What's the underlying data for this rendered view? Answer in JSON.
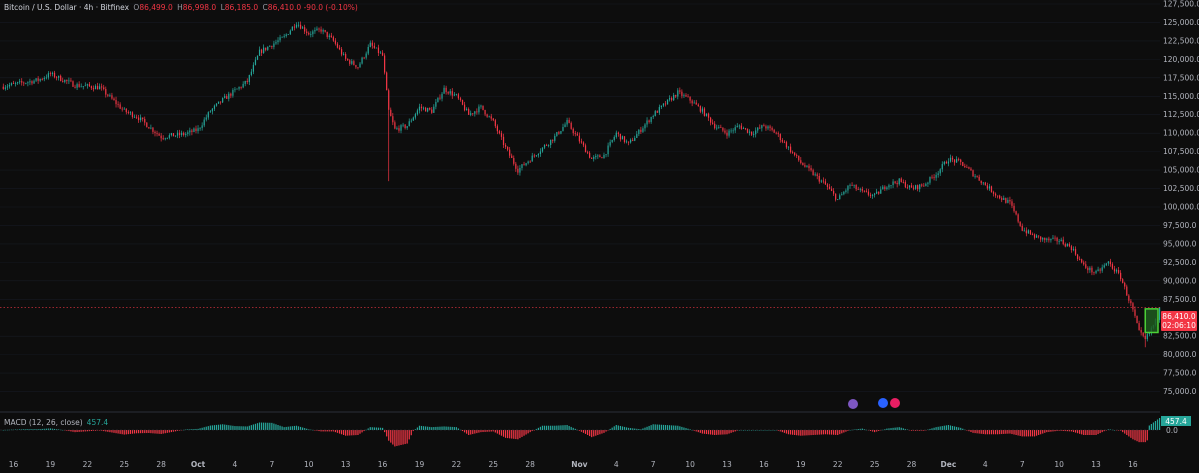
{
  "header": {
    "symbol": "Bitcoin / U.S. Dollar · 4h · Bitfinex",
    "open_label": "O",
    "open": "86,499.0",
    "high_label": "H",
    "high": "86,998.0",
    "low_label": "L",
    "low": "86,185.0",
    "close_label": "C",
    "close": "86,410.0",
    "change": "-90.0 (-0.10%)"
  },
  "price_badge": {
    "price": "86,410.0",
    "countdown": "02:06:10"
  },
  "macd": {
    "label": "MACD (12, 26, close)",
    "value": "457.4",
    "zero": "0.0"
  },
  "colors": {
    "up": "#26a69a",
    "down": "#f23645",
    "zone_fill": "#1f5a1f",
    "zone_border": "#4cd137",
    "background": "#0d0d0d"
  },
  "chart_data": {
    "type": "candlestick",
    "interval": "4h",
    "ylim": [
      72500,
      127500
    ],
    "y_ticks": [
      "127,500.0",
      "125,000.0",
      "122,500.0",
      "120,000.0",
      "117,500.0",
      "115,000.0",
      "112,500.0",
      "110,000.0",
      "107,500.0",
      "105,000.0",
      "102,500.0",
      "100,000.0",
      "97,500.0",
      "95,000.0",
      "92,500.0",
      "90,000.0",
      "87,500.0",
      "82,500.0",
      "80,000.0",
      "77,500.0",
      "75,000.0"
    ],
    "y_tick_values": [
      127500,
      125000,
      122500,
      120000,
      117500,
      115000,
      112500,
      110000,
      107500,
      105000,
      102500,
      100000,
      97500,
      95000,
      92500,
      90000,
      87500,
      82500,
      80000,
      77500,
      75000
    ],
    "x_ticks": [
      "16",
      "19",
      "22",
      "25",
      "28",
      "Oct",
      "4",
      "7",
      "10",
      "13",
      "16",
      "19",
      "22",
      "25",
      "28",
      "Nov",
      "4",
      "7",
      "10",
      "13",
      "16",
      "19",
      "22",
      "25",
      "28",
      "Dec",
      "4",
      "7",
      "10",
      "13",
      "16"
    ],
    "x_tick_days": [
      0,
      3,
      6,
      9,
      12,
      15,
      18,
      21,
      24,
      27,
      30,
      33,
      36,
      39,
      42,
      46,
      49,
      52,
      55,
      58,
      61,
      64,
      67,
      70,
      73,
      76,
      79,
      82,
      85,
      88,
      91
    ],
    "x_range_days": [
      -1.1,
      93.2
    ],
    "close_path": [
      [
        -1,
        116300
      ],
      [
        2,
        117200
      ],
      [
        3,
        118000
      ],
      [
        5,
        116500
      ],
      [
        7,
        116200
      ],
      [
        9,
        113000
      ],
      [
        10,
        112300
      ],
      [
        12,
        109500
      ],
      [
        14,
        109900
      ],
      [
        15,
        110500
      ],
      [
        16,
        113000
      ],
      [
        17,
        114500
      ],
      [
        19,
        117000
      ],
      [
        20,
        121000
      ],
      [
        22,
        123000
      ],
      [
        23,
        125000
      ],
      [
        24,
        123500
      ],
      [
        25,
        124000
      ],
      [
        26,
        122500
      ],
      [
        27,
        120000
      ],
      [
        28,
        119000
      ],
      [
        29,
        122000
      ],
      [
        30,
        120500
      ],
      [
        30.5,
        113000
      ],
      [
        31,
        110500
      ],
      [
        32,
        111000
      ],
      [
        33,
        113500
      ],
      [
        34,
        113000
      ],
      [
        35,
        116000
      ],
      [
        36,
        115000
      ],
      [
        37,
        112500
      ],
      [
        38,
        113500
      ],
      [
        39,
        111500
      ],
      [
        40,
        108000
      ],
      [
        41,
        105000
      ],
      [
        42,
        106500
      ],
      [
        43,
        108000
      ],
      [
        44,
        109500
      ],
      [
        45,
        111500
      ],
      [
        46,
        109000
      ],
      [
        47,
        106500
      ],
      [
        48,
        107000
      ],
      [
        49,
        110000
      ],
      [
        50,
        108500
      ],
      [
        51,
        110500
      ],
      [
        52,
        112500
      ],
      [
        53,
        114000
      ],
      [
        54,
        115500
      ],
      [
        55,
        114500
      ],
      [
        56,
        113000
      ],
      [
        57,
        111000
      ],
      [
        58,
        110000
      ],
      [
        59,
        111000
      ],
      [
        60,
        110000
      ],
      [
        61,
        111000
      ],
      [
        62,
        110000
      ],
      [
        63,
        108000
      ],
      [
        64,
        106000
      ],
      [
        65,
        104500
      ],
      [
        66,
        103000
      ],
      [
        67,
        101000
      ],
      [
        68,
        103000
      ],
      [
        69,
        102000
      ],
      [
        70,
        101500
      ],
      [
        71,
        103000
      ],
      [
        72,
        103500
      ],
      [
        73,
        102500
      ],
      [
        74,
        103000
      ],
      [
        75,
        104500
      ],
      [
        76,
        106500
      ],
      [
        77,
        106000
      ],
      [
        78,
        104500
      ],
      [
        79,
        103000
      ],
      [
        80,
        101500
      ],
      [
        81,
        100500
      ],
      [
        82,
        97000
      ],
      [
        83,
        96000
      ],
      [
        84,
        95500
      ],
      [
        85,
        95500
      ],
      [
        86,
        94500
      ],
      [
        87,
        92000
      ],
      [
        88,
        91000
      ],
      [
        89,
        92500
      ],
      [
        90,
        90500
      ],
      [
        91,
        86000
      ],
      [
        91.5,
        83000
      ],
      [
        92,
        82000
      ],
      [
        92.5,
        83500
      ],
      [
        93,
        85000
      ],
      [
        93.2,
        86410
      ]
    ],
    "last_price": 86410,
    "zone": {
      "low": 83000,
      "high": 86200,
      "from_day": 92.0
    },
    "macd_hist_note": "histogram oscillates around zero; last value 457.4"
  }
}
